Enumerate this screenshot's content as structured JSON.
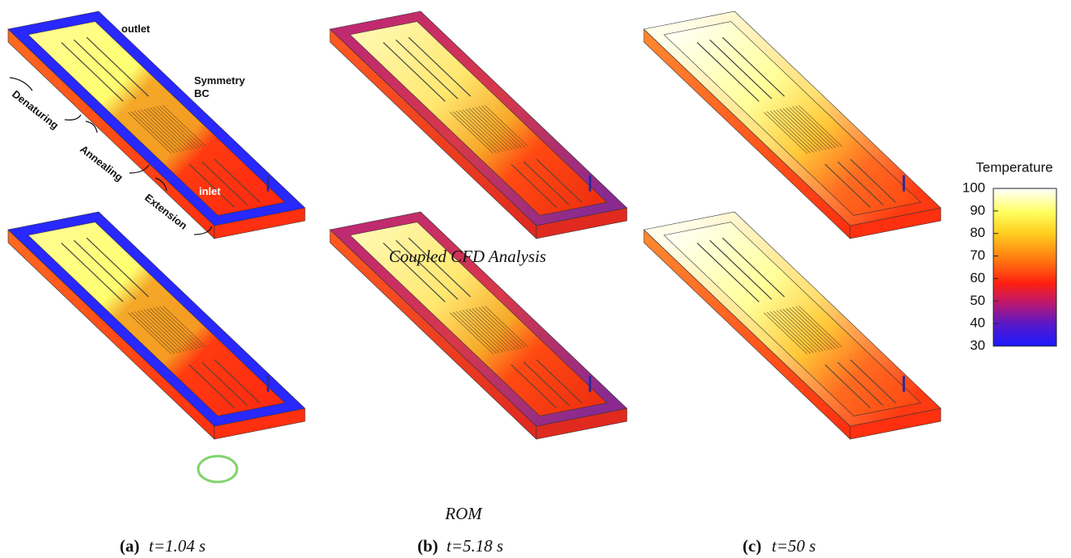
{
  "annotations": {
    "outlet": "outlet",
    "symmetry": [
      "Symmetry",
      "BC"
    ],
    "denaturing": "Denaturing",
    "annealing": "Annealing",
    "extension": "Extension",
    "inlet": "inlet"
  },
  "row_labels": [
    "Coupled CFD Analysis",
    "ROM"
  ],
  "panels": [
    {
      "label": "(a)",
      "time": "t=1.04 s"
    },
    {
      "label": "(b)",
      "time": "t=5.18 s"
    },
    {
      "label": "(c)",
      "time": "t=50 s"
    }
  ],
  "colorbar": {
    "title": "Temperature",
    "lim": [
      30,
      100
    ],
    "ticks": [
      100,
      90,
      80,
      70,
      60,
      50,
      40,
      30
    ]
  }
}
